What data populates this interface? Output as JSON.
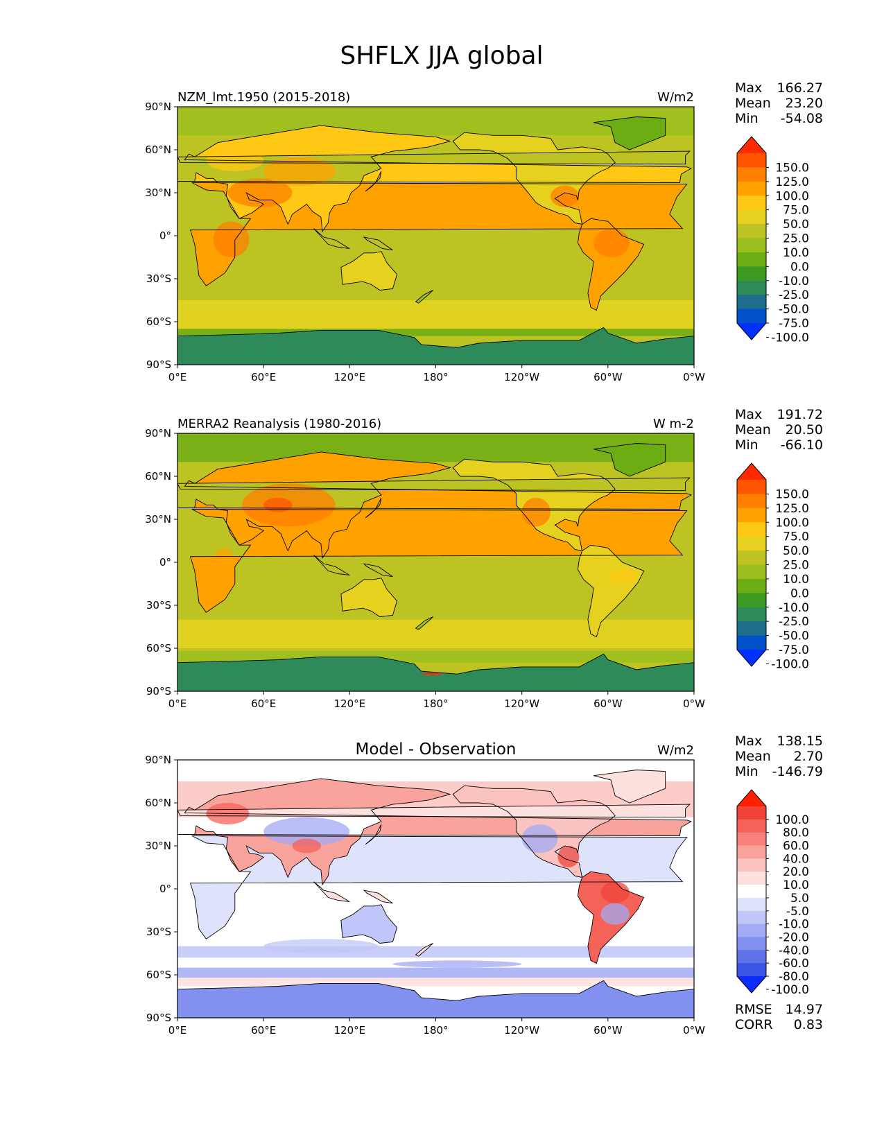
{
  "figure_title": "SHFLX JJA global",
  "chart_data": [
    {
      "type": "heatmap",
      "panel": "model",
      "subtitle_left": "NZM_lmt.1950 (2015-2018)",
      "units": "W/m2",
      "lat_ticks": [
        "90°N",
        "60°N",
        "30°N",
        "0°",
        "30°S",
        "60°S",
        "90°S"
      ],
      "lon_ticks": [
        "0°E",
        "60°E",
        "120°E",
        "180°",
        "120°W",
        "60°W",
        "0°W"
      ],
      "stats": {
        "max_label": "Max",
        "max": "166.27",
        "mean_label": "Mean",
        "mean": "23.20",
        "min_label": "Min",
        "min": "-54.08"
      },
      "colorbar": {
        "levels": [
          "150.0",
          "125.0",
          "100.0",
          "75.0",
          "50.0",
          "25.0",
          "10.0",
          "0.0",
          "-10.0",
          "-25.0",
          "-50.0",
          "-75.0",
          "-100.0"
        ],
        "colors": [
          "#ff2a00",
          "#ff5500",
          "#ff7f00",
          "#ffa200",
          "#ffc814",
          "#e6d21e",
          "#bcc322",
          "#9bbf1e",
          "#6cad14",
          "#3d9a22",
          "#2f8a5a",
          "#1f6e8c",
          "#0050c8",
          "#0030ff"
        ]
      }
    },
    {
      "type": "heatmap",
      "panel": "observation",
      "subtitle_left": "MERRA2 Reanalysis (1980-2016)",
      "units": "W m-2",
      "lat_ticks": [
        "90°N",
        "60°N",
        "30°N",
        "0°",
        "30°S",
        "60°S",
        "90°S"
      ],
      "lon_ticks": [
        "0°E",
        "60°E",
        "120°E",
        "180°",
        "120°W",
        "60°W",
        "0°W"
      ],
      "stats": {
        "max_label": "Max",
        "max": "191.72",
        "mean_label": "Mean",
        "mean": "20.50",
        "min_label": "Min",
        "min": "-66.10"
      },
      "colorbar": {
        "levels": [
          "150.0",
          "125.0",
          "100.0",
          "75.0",
          "50.0",
          "25.0",
          "10.0",
          "0.0",
          "-10.0",
          "-25.0",
          "-50.0",
          "-75.0",
          "-100.0"
        ],
        "colors": [
          "#ff2a00",
          "#ff5500",
          "#ff7f00",
          "#ffa200",
          "#ffc814",
          "#e6d21e",
          "#bcc322",
          "#9bbf1e",
          "#6cad14",
          "#3d9a22",
          "#2f8a5a",
          "#1f6e8c",
          "#0050c8",
          "#0030ff"
        ]
      }
    },
    {
      "type": "heatmap",
      "panel": "difference",
      "title_center": "Model - Observation",
      "units": "W/m2",
      "lat_ticks": [
        "90°N",
        "60°N",
        "30°N",
        "0°",
        "30°S",
        "60°S",
        "90°S"
      ],
      "lon_ticks": [
        "0°E",
        "60°E",
        "120°E",
        "180°",
        "120°W",
        "60°W",
        "0°W"
      ],
      "stats": {
        "max_label": "Max",
        "max": "138.15",
        "mean_label": "Mean",
        "mean": "2.70",
        "min_label": "Min",
        "min": "-146.79"
      },
      "metrics": {
        "rmse_label": "RMSE",
        "rmse": "14.97",
        "corr_label": "CORR",
        "corr": "0.83"
      },
      "colorbar": {
        "levels": [
          "100.0",
          "80.0",
          "60.0",
          "40.0",
          "20.0",
          "10.0",
          "5.0",
          "-5.0",
          "-10.0",
          "-20.0",
          "-40.0",
          "-60.0",
          "-80.0",
          "-100.0"
        ],
        "colors": [
          "#ff2000",
          "#f0443a",
          "#f5625a",
          "#f7837c",
          "#f9a39d",
          "#fbc3bf",
          "#fde1df",
          "#ffffff",
          "#dfe2fb",
          "#c0c6f7",
          "#a1aaf3",
          "#8290ef",
          "#5f72ea",
          "#3c55e6",
          "#0a2cff"
        ]
      }
    }
  ]
}
